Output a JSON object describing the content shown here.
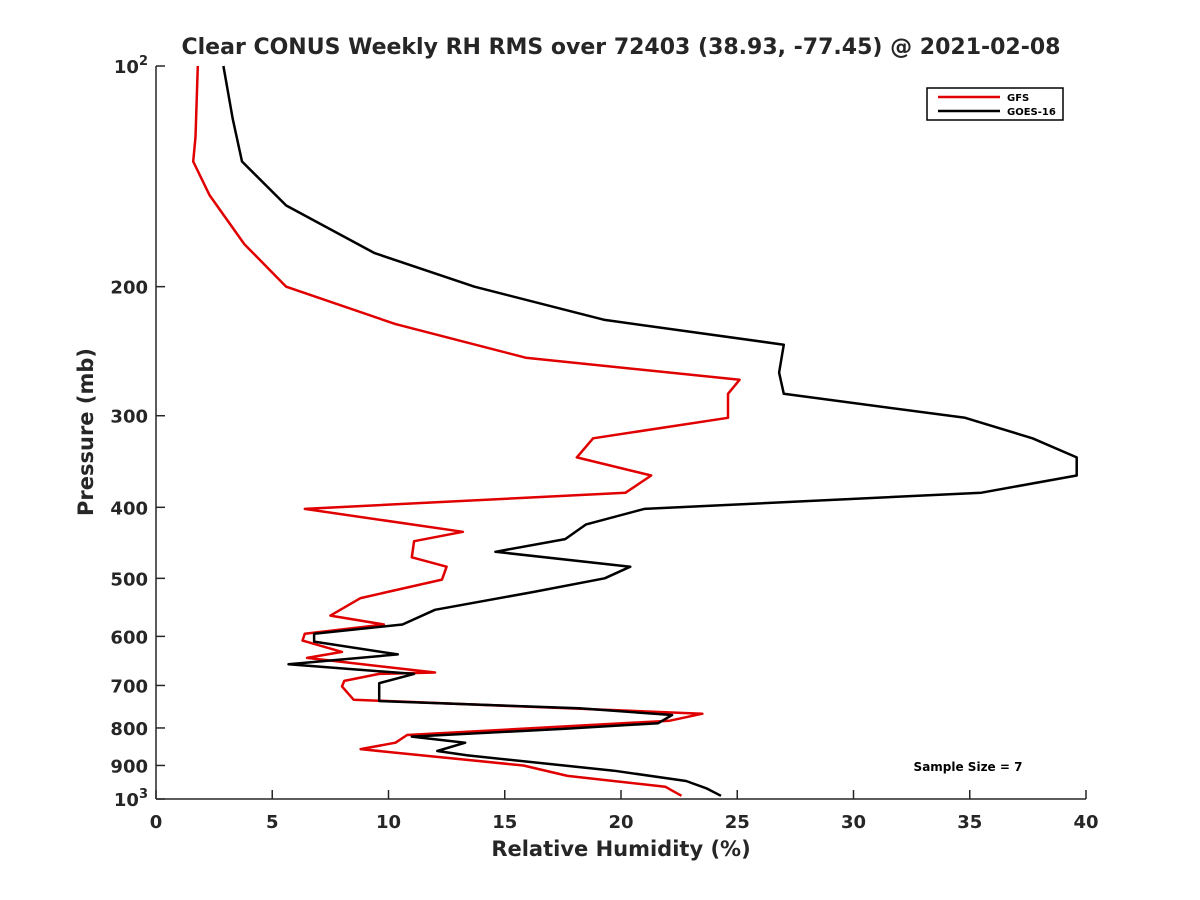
{
  "chart_data": {
    "type": "line",
    "title": "Clear CONUS Weekly RH RMS over 72403 (38.93, -77.45) @ 2021-02-08",
    "xlabel": "Relative Humidity (%)",
    "ylabel": "Pressure (mb)",
    "xlim": [
      0,
      40
    ],
    "ylim": [
      100,
      1000
    ],
    "y_scale": "log",
    "y_reversed": true,
    "x_ticks": [
      "0",
      "5",
      "10",
      "15",
      "20",
      "25",
      "30",
      "35",
      "40"
    ],
    "y_ticks": [
      {
        "value": 100,
        "base": "10",
        "exp": "2"
      },
      {
        "value": 200,
        "base": "200",
        "exp": ""
      },
      {
        "value": 300,
        "base": "300",
        "exp": ""
      },
      {
        "value": 400,
        "base": "400",
        "exp": ""
      },
      {
        "value": 500,
        "base": "500",
        "exp": ""
      },
      {
        "value": 600,
        "base": "600",
        "exp": ""
      },
      {
        "value": 700,
        "base": "700",
        "exp": ""
      },
      {
        "value": 800,
        "base": "800",
        "exp": ""
      },
      {
        "value": 900,
        "base": "900",
        "exp": ""
      },
      {
        "value": 1000,
        "base": "10",
        "exp": "3"
      }
    ],
    "grid": false,
    "legend_position": "top-right",
    "annotation": "Sample Size = 7",
    "series": [
      {
        "name": "GFS",
        "color": "#e00000",
        "points": [
          [
            1.8,
            100
          ],
          [
            1.7,
            125
          ],
          [
            1.6,
            135
          ],
          [
            2.3,
            150
          ],
          [
            3.8,
            175
          ],
          [
            5.6,
            200
          ],
          [
            10.3,
            225
          ],
          [
            15.9,
            250
          ],
          [
            25.1,
            268
          ],
          [
            24.6,
            280
          ],
          [
            24.6,
            302
          ],
          [
            18.8,
            322
          ],
          [
            18.1,
            342
          ],
          [
            21.3,
            362
          ],
          [
            20.2,
            382
          ],
          [
            6.4,
            402
          ],
          [
            13.2,
            432
          ],
          [
            11.1,
            445
          ],
          [
            11.0,
            468
          ],
          [
            12.5,
            482
          ],
          [
            12.3,
            502
          ],
          [
            8.8,
            532
          ],
          [
            7.5,
            562
          ],
          [
            9.8,
            578
          ],
          [
            6.4,
            595
          ],
          [
            6.3,
            608
          ],
          [
            8.0,
            630
          ],
          [
            6.5,
            642
          ],
          [
            12.0,
            672
          ],
          [
            9.6,
            675
          ],
          [
            8.1,
            690
          ],
          [
            8.0,
            702
          ],
          [
            8.5,
            732
          ],
          [
            23.5,
            765
          ],
          [
            22.1,
            782
          ],
          [
            10.8,
            818
          ],
          [
            10.3,
            838
          ],
          [
            8.8,
            855
          ],
          [
            10.8,
            868
          ],
          [
            15.8,
            900
          ],
          [
            17.7,
            930
          ],
          [
            21.9,
            962
          ],
          [
            22.6,
            990
          ]
        ]
      },
      {
        "name": "GOES-16",
        "color": "#000000",
        "points": [
          [
            2.9,
            100
          ],
          [
            3.3,
            118
          ],
          [
            3.7,
            135
          ],
          [
            5.6,
            155
          ],
          [
            9.4,
            180
          ],
          [
            13.7,
            200
          ],
          [
            19.3,
            222
          ],
          [
            27.0,
            240
          ],
          [
            26.8,
            262
          ],
          [
            27.0,
            280
          ],
          [
            34.8,
            302
          ],
          [
            37.7,
            322
          ],
          [
            39.6,
            342
          ],
          [
            39.6,
            362
          ],
          [
            35.5,
            382
          ],
          [
            21.0,
            402
          ],
          [
            18.5,
            422
          ],
          [
            17.6,
            442
          ],
          [
            14.6,
            460
          ],
          [
            20.4,
            482
          ],
          [
            19.3,
            500
          ],
          [
            16.2,
            522
          ],
          [
            12.0,
            552
          ],
          [
            10.6,
            578
          ],
          [
            6.8,
            595
          ],
          [
            6.8,
            610
          ],
          [
            10.4,
            635
          ],
          [
            5.7,
            655
          ],
          [
            11.1,
            675
          ],
          [
            9.6,
            695
          ],
          [
            9.6,
            735
          ],
          [
            18.2,
            752
          ],
          [
            22.2,
            768
          ],
          [
            21.6,
            788
          ],
          [
            17.6,
            802
          ],
          [
            11.0,
            822
          ],
          [
            13.3,
            838
          ],
          [
            12.1,
            860
          ],
          [
            13.4,
            872
          ],
          [
            19.7,
            915
          ],
          [
            22.8,
            945
          ],
          [
            23.7,
            968
          ],
          [
            24.3,
            990
          ]
        ]
      }
    ]
  }
}
